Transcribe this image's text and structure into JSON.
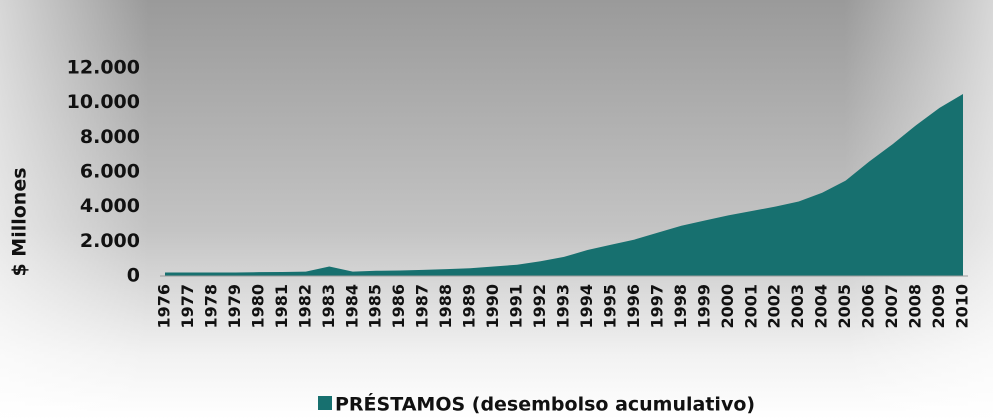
{
  "chart_data": {
    "type": "area",
    "y_label": "$ Millones",
    "categories": [
      "1976",
      "1977",
      "1978",
      "1979",
      "1980",
      "1981",
      "1982",
      "1983",
      "1984",
      "1985",
      "1986",
      "1987",
      "1988",
      "1989",
      "1990",
      "1991",
      "1992",
      "1993",
      "1994",
      "1995",
      "1996",
      "1997",
      "1998",
      "1999",
      "2000",
      "2001",
      "2002",
      "2003",
      "2004",
      "2005",
      "2006",
      "2007",
      "2008",
      "2009",
      "2010"
    ],
    "series": [
      {
        "name": "PRÉSTAMOS (desembolso acumulativo)",
        "color": "#17706f",
        "values": [
          200,
          200,
          200,
          200,
          220,
          230,
          250,
          550,
          250,
          300,
          320,
          350,
          400,
          450,
          550,
          650,
          850,
          1100,
          1500,
          1800,
          2100,
          2500,
          2900,
          3200,
          3500,
          3750,
          4000,
          4300,
          4800,
          5500,
          6600,
          7600,
          8700,
          9700,
          10500
        ]
      }
    ],
    "ylim": [
      0,
      12000
    ],
    "yticks": [
      0,
      {
        "value": 2000,
        "label": "2.000"
      },
      {
        "value": 4000,
        "label": "4.000"
      },
      {
        "value": 6000,
        "label": "6.000"
      },
      {
        "value": 8000,
        "label": "8.000"
      },
      {
        "value": 10000,
        "label": "10.000"
      },
      {
        "value": 12000,
        "label": "12.000"
      }
    ]
  }
}
